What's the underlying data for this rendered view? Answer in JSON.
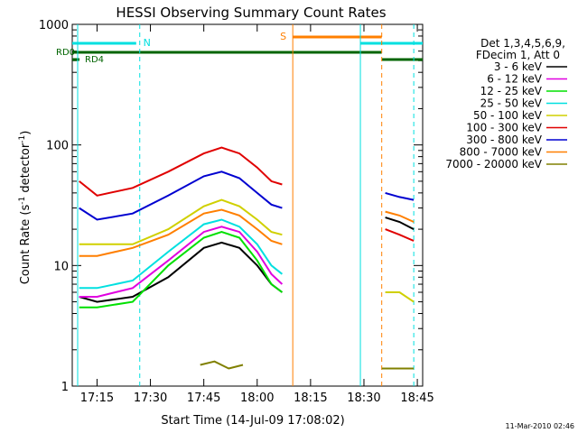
{
  "chart_data": {
    "type": "line",
    "title": "HESSI Observing Summary Count Rates",
    "xlabel": "Start Time (14-Jul-09 17:08:02)",
    "ylabel_main": "Count Rate (s",
    "ylabel_sup1": "-1",
    "ylabel_mid": " detector",
    "ylabel_sup2": "-1",
    "ylabel_end": ")",
    "y_scale": "log",
    "ylim": [
      1,
      1000
    ],
    "xlim": [
      "17:08:02",
      "18:46:30"
    ],
    "x_ticks": [
      "17:15",
      "17:30",
      "17:45",
      "18:00",
      "18:15",
      "18:30",
      "18:45"
    ],
    "y_ticks": [
      "1",
      "10",
      "100",
      "1000"
    ],
    "footer_date": "11-Mar-2010 02:46",
    "legend": {
      "header": [
        "Det 1,3,4,5,6,9,",
        "FDecim 1, Att 0"
      ],
      "entries": [
        {
          "label": "3 - 6 keV",
          "color": "#000000"
        },
        {
          "label": "6 - 12 keV",
          "color": "#e000e0"
        },
        {
          "label": "12 - 25 keV",
          "color": "#00e000"
        },
        {
          "label": "25 - 50 keV",
          "color": "#00e0e0"
        },
        {
          "label": "50 - 100 keV",
          "color": "#d0d000"
        },
        {
          "label": "100 - 300 keV",
          "color": "#e00000"
        },
        {
          "label": "300 - 800 keV",
          "color": "#0000d0"
        },
        {
          "label": "800 - 7000 keV",
          "color": "#ff7f00"
        },
        {
          "label": "7000 - 20000 keV",
          "color": "#808000"
        }
      ]
    },
    "flags": [
      {
        "label": "N",
        "color": "#00e0e0"
      },
      {
        "label": "S",
        "color": "#ff7f00"
      },
      {
        "label": "RD0",
        "color": "#006400"
      },
      {
        "label": "RD4",
        "color": "#006400"
      }
    ],
    "series": [
      {
        "name": "3 - 6 keV",
        "color": "#000000",
        "x": [
          "17:10",
          "17:15",
          "17:25",
          "17:35",
          "17:45",
          "17:50",
          "17:55",
          "18:00",
          "18:04",
          "18:07",
          "18:36",
          "18:40",
          "18:44"
        ],
        "values": [
          5.5,
          5.0,
          5.5,
          8,
          14,
          15.5,
          14,
          10,
          7,
          6,
          25,
          23,
          20
        ]
      },
      {
        "name": "6 - 12 keV",
        "color": "#e000e0",
        "x": [
          "17:10",
          "17:15",
          "17:25",
          "17:35",
          "17:45",
          "17:50",
          "17:55",
          "18:00",
          "18:04",
          "18:07"
        ],
        "values": [
          5.5,
          5.5,
          6.5,
          11,
          19,
          21,
          19,
          13,
          8.5,
          7
        ]
      },
      {
        "name": "12 - 25 keV",
        "color": "#00e000",
        "x": [
          "17:10",
          "17:15",
          "17:25",
          "17:35",
          "17:45",
          "17:50",
          "17:55",
          "18:00",
          "18:04",
          "18:07"
        ],
        "values": [
          4.5,
          4.5,
          5.0,
          10,
          17,
          19,
          17,
          11,
          7,
          6
        ]
      },
      {
        "name": "25 - 50 keV",
        "color": "#00e0e0",
        "x": [
          "17:10",
          "17:15",
          "17:25",
          "17:35",
          "17:45",
          "17:50",
          "17:55",
          "18:00",
          "18:04",
          "18:07"
        ],
        "values": [
          6.5,
          6.5,
          7.5,
          13,
          22,
          24,
          21,
          15,
          10,
          8.5
        ]
      },
      {
        "name": "50 - 100 keV",
        "color": "#d0d000",
        "x": [
          "17:10",
          "17:15",
          "17:25",
          "17:35",
          "17:45",
          "17:50",
          "17:55",
          "18:00",
          "18:04",
          "18:07",
          "18:36",
          "18:40",
          "18:44"
        ],
        "values": [
          15,
          15,
          15,
          20,
          31,
          35,
          31,
          24,
          19,
          18,
          6,
          6,
          5
        ]
      },
      {
        "name": "100 - 300 keV",
        "color": "#e00000",
        "x": [
          "17:10",
          "17:15",
          "17:25",
          "17:35",
          "17:45",
          "17:50",
          "17:55",
          "18:00",
          "18:04",
          "18:07",
          "18:36",
          "18:40",
          "18:44"
        ],
        "values": [
          50,
          38,
          44,
          60,
          85,
          95,
          85,
          65,
          50,
          47,
          20,
          18,
          16
        ]
      },
      {
        "name": "300 - 800 keV",
        "color": "#0000d0",
        "x": [
          "17:10",
          "17:15",
          "17:25",
          "17:35",
          "17:45",
          "17:50",
          "17:55",
          "18:00",
          "18:04",
          "18:07",
          "18:36",
          "18:40",
          "18:44"
        ],
        "values": [
          30,
          24,
          27,
          38,
          55,
          60,
          53,
          40,
          32,
          30,
          40,
          37,
          35
        ]
      },
      {
        "name": "800 - 7000 keV",
        "color": "#ff7f00",
        "x": [
          "17:10",
          "17:15",
          "17:25",
          "17:35",
          "17:45",
          "17:50",
          "17:55",
          "18:00",
          "18:04",
          "18:07",
          "18:36",
          "18:40",
          "18:44"
        ],
        "values": [
          12,
          12,
          14,
          18,
          27,
          29,
          26,
          20,
          16,
          15,
          28,
          26,
          23
        ]
      },
      {
        "name": "7000 - 20000 keV",
        "color": "#808000",
        "x": [
          "17:44",
          "17:48",
          "17:52",
          "17:56",
          "18:35",
          "18:40",
          "18:44"
        ],
        "values": [
          1.5,
          1.6,
          1.4,
          1.5,
          1.4,
          1.4,
          1.4
        ]
      }
    ]
  }
}
